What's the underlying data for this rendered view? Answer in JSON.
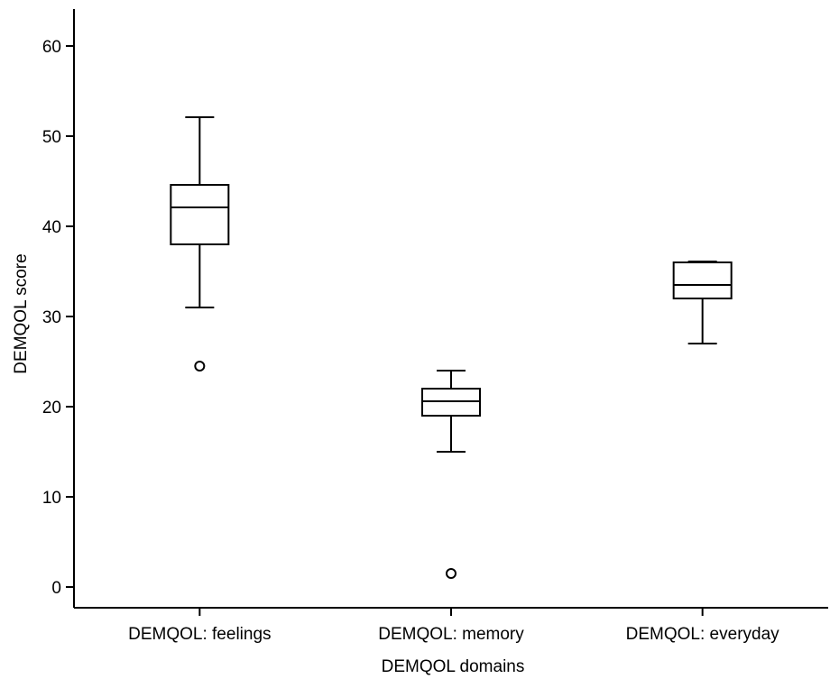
{
  "chart_data": {
    "type": "box",
    "xlabel": "DEMQOL domains",
    "ylabel": "DEMQOL score",
    "ylim": [
      -2.3,
      64.1
    ],
    "yticks": [
      0,
      10,
      20,
      30,
      40,
      50,
      60
    ],
    "grid": false,
    "legend": "none",
    "colors": {
      "stroke": "#000000",
      "fill": "#ffffff"
    },
    "categories": [
      "DEMQOL: feelings",
      "DEMQOL: memory",
      "DEMQOL: everyday"
    ],
    "boxes": [
      {
        "category": "DEMQOL: feelings",
        "whisker_low": 31,
        "q1": 38,
        "median": 42.1,
        "q3": 44.6,
        "whisker_high": 52.1,
        "outliers": [
          24.5
        ]
      },
      {
        "category": "DEMQOL: memory",
        "whisker_low": 15,
        "q1": 19,
        "median": 20.6,
        "q3": 22,
        "whisker_high": 24,
        "outliers": [
          1.5
        ]
      },
      {
        "category": "DEMQOL: everyday",
        "whisker_low": 27,
        "q1": 32,
        "median": 33.5,
        "q3": 36,
        "whisker_high": 36.1,
        "outliers": []
      }
    ]
  }
}
